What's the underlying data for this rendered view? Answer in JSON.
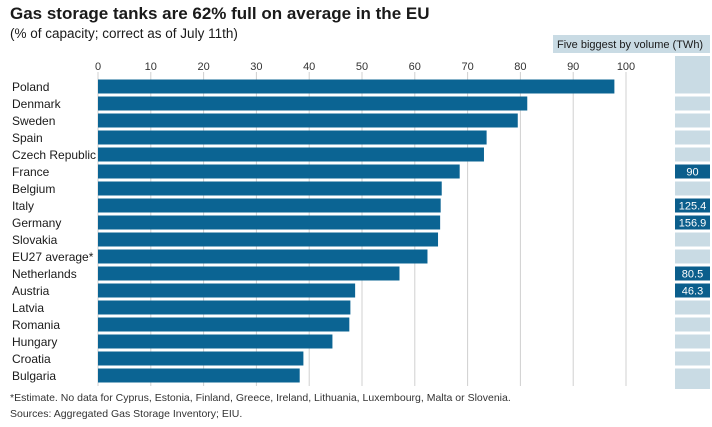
{
  "title": "Gas storage tanks are 62% full on average in the EU",
  "subtitle": "(% of capacity; correct as of July 11th)",
  "side_header": "Five biggest by volume (TWh)",
  "footnote": "*Estimate. No data for Cyprus, Estonia, Finland, Greece, Ireland, Lithuania, Luxembourg, Malta or Slovenia.",
  "sources": "Sources: Aggregated Gas Storage Inventory; EIU.",
  "colors": {
    "bar": "#0b6493",
    "side_bg": "#c9dbe4",
    "side_box": "#0b5e8c",
    "grid": "#d0d0d0"
  },
  "chart_data": {
    "type": "bar",
    "orientation": "horizontal",
    "xlim": [
      0,
      100
    ],
    "ticks": [
      0,
      10,
      20,
      30,
      40,
      50,
      60,
      70,
      80,
      90,
      100
    ],
    "categories": [
      "Poland",
      "Denmark",
      "Sweden",
      "Spain",
      "Czech Republic",
      "France",
      "Belgium",
      "Italy",
      "Germany",
      "Slovakia",
      "EU27 average*",
      "Netherlands",
      "Austria",
      "Latvia",
      "Romania",
      "Hungary",
      "Croatia",
      "Bulgaria"
    ],
    "values": [
      97.8,
      81.3,
      79.5,
      73.6,
      73.1,
      68.5,
      65.1,
      64.9,
      64.8,
      64.4,
      62.4,
      57.1,
      48.7,
      47.8,
      47.6,
      44.4,
      38.9,
      38.2
    ],
    "volume_twh": [
      "",
      "",
      "",
      "",
      "",
      "90",
      "",
      "125.4",
      "156.9",
      "",
      "",
      "80.5",
      "46.3",
      "",
      "",
      "",
      "",
      ""
    ]
  }
}
